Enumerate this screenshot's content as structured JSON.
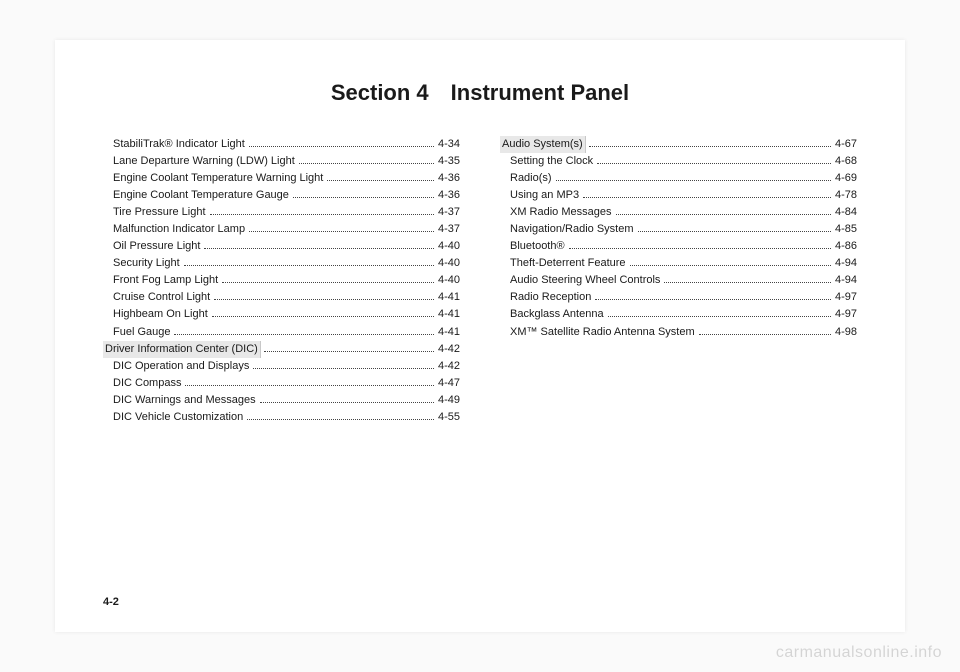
{
  "title": "Section 4 Instrument Panel",
  "footerPage": "4-2",
  "watermark": "carmanualsonline.info",
  "left": [
    {
      "label": "StabiliTrak® Indicator Light",
      "page": "4-34",
      "indent": true
    },
    {
      "label": "Lane Departure Warning (LDW) Light",
      "page": "4-35",
      "indent": true
    },
    {
      "label": "Engine Coolant Temperature Warning Light",
      "page": "4-36",
      "indent": true
    },
    {
      "label": "Engine Coolant Temperature Gauge",
      "page": "4-36",
      "indent": true
    },
    {
      "label": "Tire Pressure Light",
      "page": "4-37",
      "indent": true
    },
    {
      "label": "Malfunction Indicator Lamp",
      "page": "4-37",
      "indent": true
    },
    {
      "label": "Oil Pressure Light",
      "page": "4-40",
      "indent": true
    },
    {
      "label": "Security Light",
      "page": "4-40",
      "indent": true
    },
    {
      "label": "Front Fog Lamp Light",
      "page": "4-40",
      "indent": true
    },
    {
      "label": "Cruise Control Light",
      "page": "4-41",
      "indent": true
    },
    {
      "label": "Highbeam On Light",
      "page": "4-41",
      "indent": true
    },
    {
      "label": "Fuel Gauge",
      "page": "4-41",
      "indent": true
    },
    {
      "label": "Driver Information Center (DIC)",
      "page": "4-42",
      "indent": false,
      "highlight": true
    },
    {
      "label": "DIC Operation and Displays",
      "page": "4-42",
      "indent": true
    },
    {
      "label": "DIC Compass",
      "page": "4-47",
      "indent": true
    },
    {
      "label": "DIC Warnings and Messages",
      "page": "4-49",
      "indent": true
    },
    {
      "label": "DIC Vehicle Customization",
      "page": "4-55",
      "indent": true
    }
  ],
  "right": [
    {
      "label": "Audio System(s)",
      "page": "4-67",
      "indent": false,
      "highlight": true
    },
    {
      "label": "Setting the Clock",
      "page": "4-68",
      "indent": true
    },
    {
      "label": "Radio(s)",
      "page": "4-69",
      "indent": true
    },
    {
      "label": "Using an MP3",
      "page": "4-78",
      "indent": true
    },
    {
      "label": "XM Radio Messages",
      "page": "4-84",
      "indent": true
    },
    {
      "label": "Navigation/Radio System",
      "page": "4-85",
      "indent": true
    },
    {
      "label": "Bluetooth®",
      "page": "4-86",
      "indent": true
    },
    {
      "label": "Theft-Deterrent Feature",
      "page": "4-94",
      "indent": true
    },
    {
      "label": "Audio Steering Wheel Controls",
      "page": "4-94",
      "indent": true
    },
    {
      "label": "Radio Reception",
      "page": "4-97",
      "indent": true
    },
    {
      "label": "Backglass Antenna",
      "page": "4-97",
      "indent": true
    },
    {
      "label": "XM™ Satellite Radio Antenna System",
      "page": "4-98",
      "indent": true
    }
  ]
}
